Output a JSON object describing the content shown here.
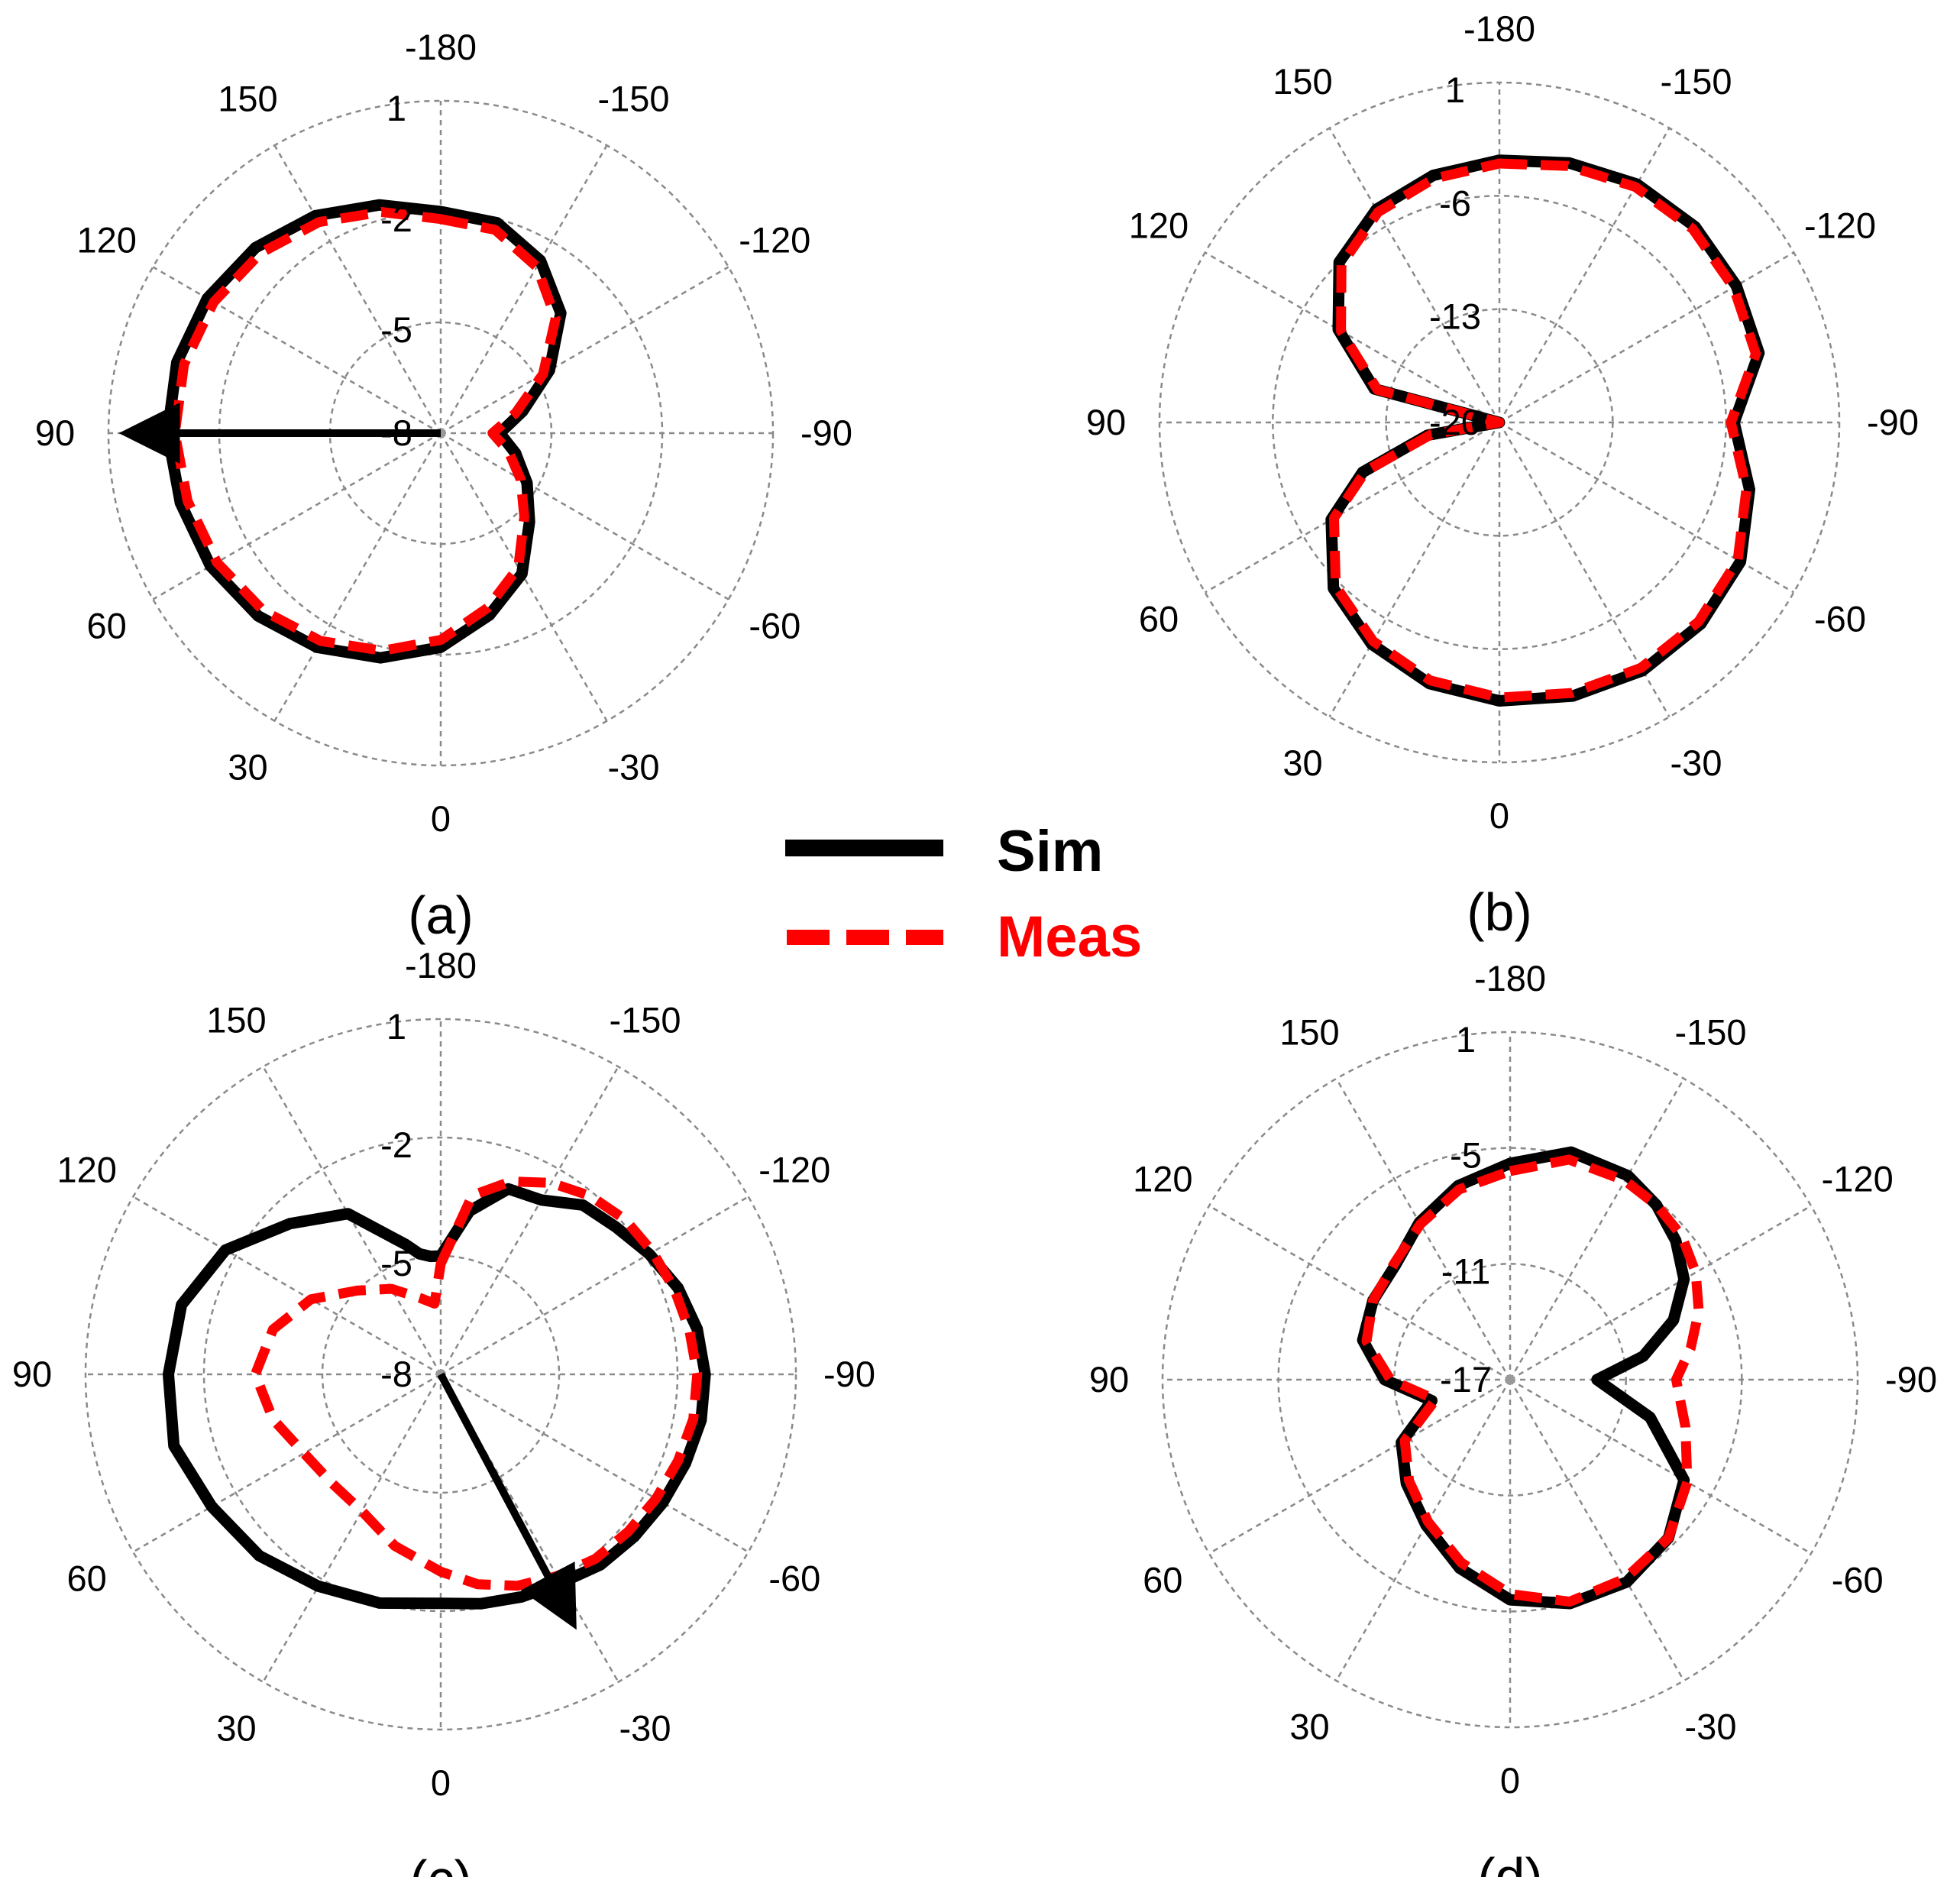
{
  "colors": {
    "sim": "#000000",
    "meas": "#ff0000",
    "grid": "#8a8a8a"
  },
  "legend": {
    "sim_label": "Sim",
    "meas_label": "Meas"
  },
  "chart_data": [
    {
      "type": "polar-line",
      "panel_label": "(a)",
      "angle_labels": [
        {
          "angle": -180,
          "text": "-180"
        },
        {
          "angle": -150,
          "text": "-150"
        },
        {
          "angle": -120,
          "text": "-120"
        },
        {
          "angle": -90,
          "text": "-90"
        },
        {
          "angle": -60,
          "text": "-60"
        },
        {
          "angle": -30,
          "text": "-30"
        },
        {
          "angle": 0,
          "text": "0"
        },
        {
          "angle": 30,
          "text": "30"
        },
        {
          "angle": 60,
          "text": "60"
        },
        {
          "angle": 90,
          "text": "90"
        },
        {
          "angle": 120,
          "text": "120"
        },
        {
          "angle": 150,
          "text": "150"
        }
      ],
      "rlim": [
        -8,
        1
      ],
      "ring_labels": [
        "-8",
        "-5",
        "-2",
        "1"
      ],
      "arrow_angle": 90,
      "series": [
        {
          "name": "Sim",
          "angles": [
            -180,
            -165,
            -150,
            -135,
            -120,
            -105,
            -90,
            -75,
            -60,
            -45,
            -30,
            -15,
            0,
            15,
            30,
            45,
            60,
            75,
            90,
            105,
            120,
            135,
            150,
            165
          ],
          "values": [
            -2.0,
            -2.1,
            -2.6,
            -3.4,
            -4.6,
            -5.7,
            -6.4,
            -5.9,
            -5.3,
            -4.6,
            -3.6,
            -2.9,
            -2.2,
            -1.7,
            -1.3,
            -1.0,
            -0.8,
            -0.7,
            -0.6,
            -0.6,
            -0.7,
            -0.9,
            -1.2,
            -1.6
          ]
        },
        {
          "name": "Meas",
          "angles": [
            -180,
            -165,
            -150,
            -135,
            -120,
            -105,
            -90,
            -75,
            -60,
            -45,
            -30,
            -15,
            0,
            15,
            30,
            45,
            60,
            75,
            90,
            105,
            120,
            135,
            150,
            165
          ],
          "values": [
            -2.2,
            -2.3,
            -2.8,
            -3.6,
            -4.8,
            -5.9,
            -6.6,
            -6.1,
            -5.5,
            -4.8,
            -3.8,
            -3.1,
            -2.4,
            -1.9,
            -1.5,
            -1.2,
            -1.0,
            -0.9,
            -0.8,
            -0.8,
            -0.9,
            -1.1,
            -1.4,
            -1.8
          ]
        }
      ]
    },
    {
      "type": "polar-line",
      "panel_label": "(b)",
      "angle_labels": [
        {
          "angle": -180,
          "text": "-180"
        },
        {
          "angle": -150,
          "text": "-150"
        },
        {
          "angle": -120,
          "text": "-120"
        },
        {
          "angle": -90,
          "text": "-90"
        },
        {
          "angle": -60,
          "text": "-60"
        },
        {
          "angle": -30,
          "text": "-30"
        },
        {
          "angle": 0,
          "text": "0"
        },
        {
          "angle": 30,
          "text": "30"
        },
        {
          "angle": 60,
          "text": "60"
        },
        {
          "angle": 90,
          "text": "90"
        },
        {
          "angle": 120,
          "text": "120"
        },
        {
          "angle": 150,
          "text": "150"
        }
      ],
      "rlim": [
        -20,
        1
      ],
      "ring_labels": [
        "-20",
        "-13",
        "-6",
        "1"
      ],
      "series": [
        {
          "name": "Sim",
          "angles": [
            -180,
            -165,
            -150,
            -135,
            -120,
            -105,
            -90,
            -75,
            -60,
            -45,
            -30,
            -15,
            0,
            15,
            30,
            45,
            60,
            70,
            80,
            90,
            105,
            120,
            135,
            150,
            165
          ],
          "values": [
            -3.8,
            -3.4,
            -3.0,
            -2.9,
            -3.1,
            -3.4,
            -5.5,
            -4.0,
            -2.8,
            -2.4,
            -2.3,
            -2.5,
            -2.8,
            -3.3,
            -4.2,
            -5.5,
            -8.0,
            -11.0,
            -15.5,
            -20.0,
            -12.0,
            -8.5,
            -6.0,
            -4.8,
            -4.2
          ]
        },
        {
          "name": "Meas",
          "angles": [
            -180,
            -165,
            -150,
            -135,
            -120,
            -105,
            -90,
            -75,
            -60,
            -45,
            -30,
            -15,
            0,
            15,
            30,
            45,
            60,
            70,
            80,
            90,
            105,
            120,
            135,
            150,
            165
          ],
          "values": [
            -4.0,
            -3.6,
            -3.2,
            -3.1,
            -3.3,
            -3.6,
            -5.7,
            -4.2,
            -3.0,
            -2.6,
            -2.5,
            -2.7,
            -3.0,
            -3.5,
            -4.4,
            -5.7,
            -8.2,
            -11.2,
            -15.7,
            -20.0,
            -12.2,
            -8.7,
            -6.2,
            -5.0,
            -4.4
          ]
        }
      ]
    },
    {
      "type": "polar-line",
      "panel_label": "(c)",
      "angle_labels": [
        {
          "angle": -180,
          "text": "-180"
        },
        {
          "angle": -150,
          "text": "-150"
        },
        {
          "angle": -120,
          "text": "-120"
        },
        {
          "angle": -90,
          "text": "-90"
        },
        {
          "angle": -60,
          "text": "-60"
        },
        {
          "angle": -30,
          "text": "-30"
        },
        {
          "angle": 0,
          "text": "0"
        },
        {
          "angle": 30,
          "text": "30"
        },
        {
          "angle": 60,
          "text": "60"
        },
        {
          "angle": 90,
          "text": "90"
        },
        {
          "angle": 120,
          "text": "120"
        },
        {
          "angle": 150,
          "text": "150"
        }
      ],
      "rlim": [
        -8,
        1
      ],
      "ring_labels": [
        "-8",
        "-5",
        "-2",
        "1"
      ],
      "arrow_angle": -28,
      "series": [
        {
          "name": "Sim",
          "angles": [
            -180,
            -170,
            -160,
            -150,
            -140,
            -130,
            -120,
            -110,
            -100,
            -90,
            -80,
            -70,
            -60,
            -50,
            -40,
            -30,
            -20,
            -10,
            0,
            15,
            30,
            45,
            60,
            75,
            90,
            105,
            120,
            135,
            150,
            165,
            170,
            175
          ],
          "values": [
            -5.0,
            -3.8,
            -3.0,
            -2.9,
            -2.4,
            -2.2,
            -1.9,
            -1.6,
            -1.4,
            -1.3,
            -1.3,
            -1.4,
            -1.5,
            -1.6,
            -1.7,
            -1.9,
            -2.0,
            -2.1,
            -2.2,
            -2.0,
            -1.8,
            -1.5,
            -1.3,
            -1.0,
            -1.1,
            -1.2,
            -1.7,
            -2.6,
            -3.3,
            -4.6,
            -4.9,
            -5.0
          ]
        },
        {
          "name": "Meas",
          "angles": [
            -180,
            -170,
            -160,
            -150,
            -140,
            -130,
            -120,
            -110,
            -100,
            -90,
            -80,
            -70,
            -60,
            -50,
            -40,
            -30,
            -20,
            -10,
            0,
            15,
            30,
            45,
            60,
            75,
            90,
            105,
            120,
            135,
            150,
            165,
            175
          ],
          "values": [
            -5.2,
            -3.4,
            -2.8,
            -2.4,
            -2.1,
            -1.9,
            -1.8,
            -1.7,
            -1.6,
            -1.5,
            -1.5,
            -1.6,
            -1.7,
            -1.8,
            -1.9,
            -2.1,
            -2.3,
            -2.6,
            -3.0,
            -3.5,
            -4.0,
            -4.1,
            -4.0,
            -3.6,
            -3.3,
            -3.6,
            -4.2,
            -5.0,
            -5.5,
            -6.0,
            -6.2
          ]
        }
      ]
    },
    {
      "type": "polar-line",
      "panel_label": "(d)",
      "angle_labels": [
        {
          "angle": -180,
          "text": "-180"
        },
        {
          "angle": -150,
          "text": "-150"
        },
        {
          "angle": -120,
          "text": "-120"
        },
        {
          "angle": -90,
          "text": "-90"
        },
        {
          "angle": -60,
          "text": "-60"
        },
        {
          "angle": -30,
          "text": "-30"
        },
        {
          "angle": 0,
          "text": "0"
        },
        {
          "angle": 30,
          "text": "30"
        },
        {
          "angle": 60,
          "text": "60"
        },
        {
          "angle": 90,
          "text": "90"
        },
        {
          "angle": 120,
          "text": "120"
        },
        {
          "angle": 150,
          "text": "150"
        }
      ],
      "rlim": [
        -17,
        1
      ],
      "ring_labels": [
        "-17",
        "-11",
        "-5",
        "1"
      ],
      "series": [
        {
          "name": "Sim",
          "angles": [
            -180,
            -165,
            -150,
            -140,
            -130,
            -120,
            -110,
            -100,
            -90,
            -75,
            -60,
            -45,
            -30,
            -15,
            0,
            15,
            30,
            45,
            60,
            75,
            90,
            105,
            120,
            135,
            150,
            165
          ],
          "values": [
            -5.8,
            -4.8,
            -4.8,
            -5.2,
            -5.8,
            -6.6,
            -8.0,
            -10.0,
            -12.5,
            -9.5,
            -6.6,
            -5.4,
            -4.9,
            -5.0,
            -5.6,
            -6.9,
            -8.3,
            -9.4,
            -10.5,
            -12.8,
            -10.5,
            -9.1,
            -8.8,
            -8.6,
            -7.6,
            -6.6
          ]
        },
        {
          "name": "Meas",
          "angles": [
            -180,
            -165,
            -150,
            -140,
            -130,
            -120,
            -110,
            -100,
            -90,
            -75,
            -60,
            -45,
            -30,
            -15,
            0,
            15,
            30,
            45,
            60,
            75,
            90,
            105,
            120,
            135,
            150,
            165
          ],
          "values": [
            -6.2,
            -5.2,
            -5.1,
            -5.2,
            -5.4,
            -5.9,
            -6.6,
            -7.5,
            -8.4,
            -7.6,
            -6.4,
            -5.4,
            -5.1,
            -5.1,
            -5.9,
            -7.2,
            -8.5,
            -9.6,
            -10.7,
            -13.0,
            -10.8,
            -9.3,
            -8.8,
            -8.5,
            -7.7,
            -6.8
          ]
        }
      ]
    }
  ]
}
